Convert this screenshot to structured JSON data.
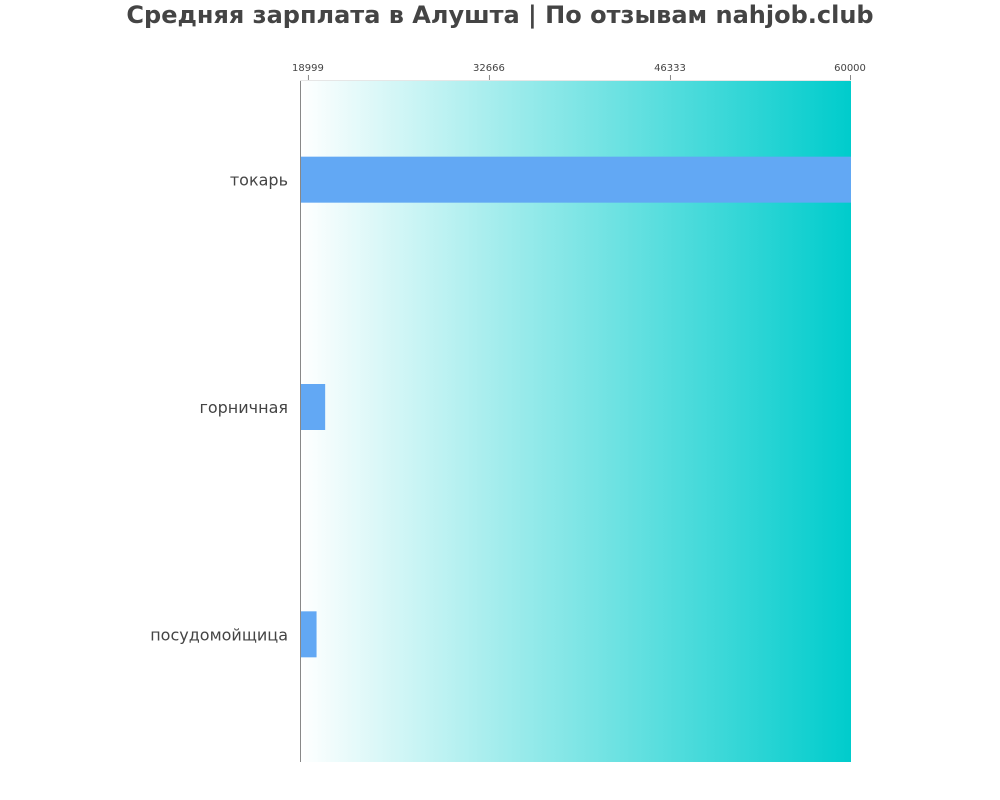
{
  "chart_data": {
    "type": "bar",
    "orientation": "horizontal",
    "title": "Средняя зарплата в Алушта | По отзывам nahjob.club",
    "xlabel": "",
    "ylabel": "",
    "categories": [
      "токарь",
      "горничная",
      "посудомойщица"
    ],
    "values": [
      60000,
      20300,
      19650
    ],
    "xlim": [
      18400,
      60000
    ],
    "xticks": [
      "18999",
      "32666",
      "46333",
      "60000"
    ],
    "grid": false,
    "legend": "none",
    "colors": {
      "bar": "#62a8f4",
      "background_start": "#ffffff",
      "background_end": "#00cccc",
      "axis": "#888888",
      "text": "#444444"
    }
  }
}
